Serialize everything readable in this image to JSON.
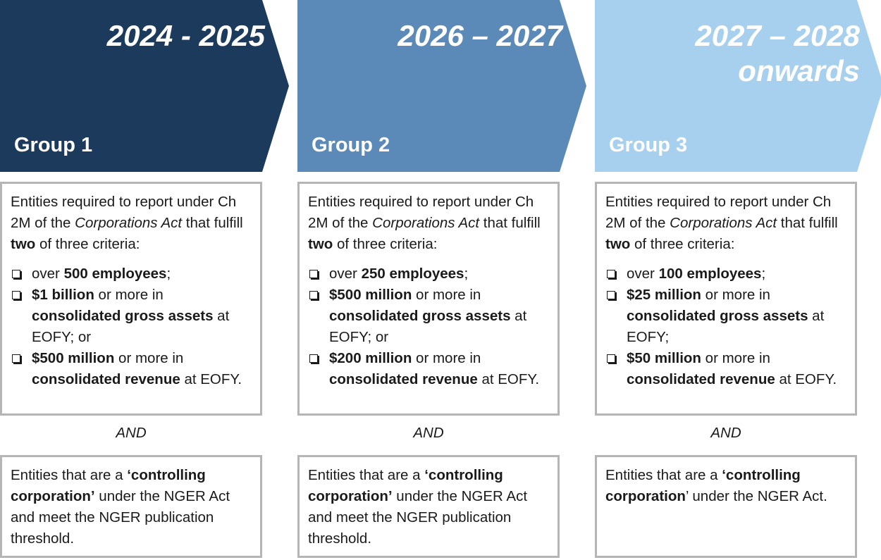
{
  "colors": {
    "group1": "#1b3a5c",
    "group2": "#5b8ab8",
    "group3": "#a7d0ee"
  },
  "columns": [
    {
      "year_lines": [
        "2024 - 2025"
      ],
      "group": "Group 1",
      "intro": {
        "t1": "Entities required to report under Ch 2M of the ",
        "act": "Corporations Act",
        "t2": " that fulfill ",
        "bold": "two",
        "t3": " of three criteria:"
      },
      "criteria": [
        [
          {
            "t": "over "
          },
          {
            "b": "500 employees"
          },
          {
            "t": ";"
          }
        ],
        [
          {
            "b": "$1 billion"
          },
          {
            "t": " or more in "
          },
          {
            "b": "consolidated gross assets"
          },
          {
            "t": " at EOFY; or"
          }
        ],
        [
          {
            "b": "$500 million"
          },
          {
            "t": " or more in "
          },
          {
            "b": "consolidated revenue"
          },
          {
            "t": " at EOFY."
          }
        ]
      ],
      "and": "AND",
      "control": [
        {
          "t": "Entities that are a "
        },
        {
          "b": "‘controlling corporation’"
        },
        {
          "t": " under the NGER Act and meet the NGER publication threshold."
        }
      ]
    },
    {
      "year_lines": [
        "2026 – 2027"
      ],
      "group": "Group 2",
      "intro": {
        "t1": "Entities required to report under Ch 2M of the ",
        "act": "Corporations Act",
        "t2": " that fulfill ",
        "bold": "two",
        "t3": " of three criteria:"
      },
      "criteria": [
        [
          {
            "t": "over "
          },
          {
            "b": "250 employees"
          },
          {
            "t": ";"
          }
        ],
        [
          {
            "b": "$500 million"
          },
          {
            "t": " or more in "
          },
          {
            "b": "consolidated gross assets"
          },
          {
            "t": " at EOFY; or"
          }
        ],
        [
          {
            "b": "$200 million"
          },
          {
            "t": " or more in "
          },
          {
            "b": "consolidated revenue"
          },
          {
            "t": " at EOFY."
          }
        ]
      ],
      "and": "AND",
      "control": [
        {
          "t": "Entities that are a "
        },
        {
          "b": "‘controlling corporation’"
        },
        {
          "t": " under the NGER Act and meet the NGER publication threshold."
        }
      ]
    },
    {
      "year_lines": [
        "2027 – 2028",
        "onwards"
      ],
      "group": "Group 3",
      "intro": {
        "t1": "Entities required to report under Ch 2M of the ",
        "act": "Corporations Act",
        "t2": " that fulfill ",
        "bold": "two",
        "t3": " of three criteria:"
      },
      "criteria": [
        [
          {
            "t": "over "
          },
          {
            "b": "100 employees"
          },
          {
            "t": ";"
          }
        ],
        [
          {
            "b": "$25 million"
          },
          {
            "t": " or more in "
          },
          {
            "b": "consolidated gross assets"
          },
          {
            "t": " at EOFY;"
          }
        ],
        [
          {
            "b": "$50 million"
          },
          {
            "t": " or more in "
          },
          {
            "b": "consolidated revenue"
          },
          {
            "t": " at EOFY."
          }
        ]
      ],
      "and": "AND",
      "control": [
        {
          "t": "Entities that are a "
        },
        {
          "b": "‘controlling corporation"
        },
        {
          "t": "’ under the NGER Act."
        }
      ]
    }
  ]
}
